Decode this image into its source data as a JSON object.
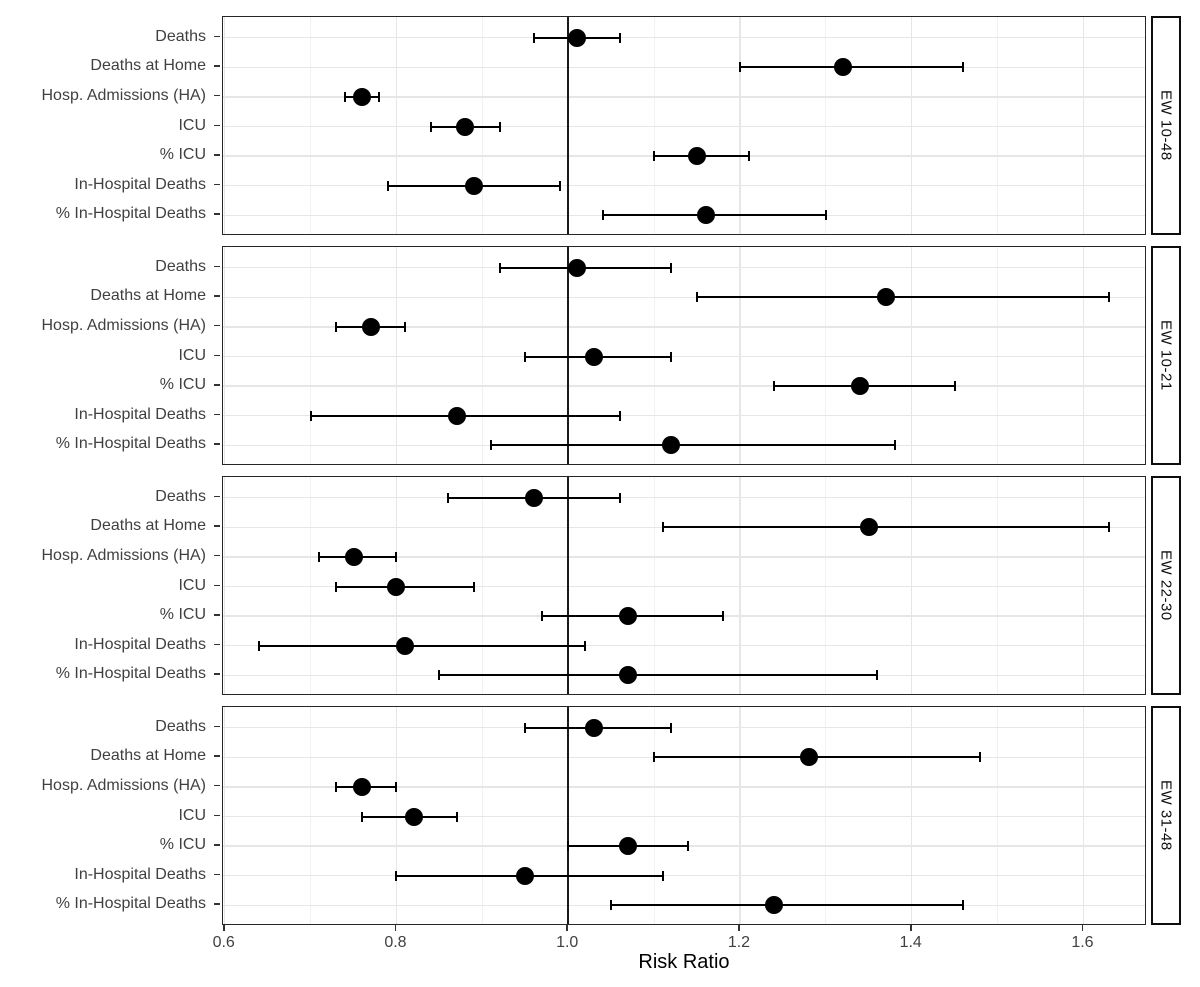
{
  "chart_data": {
    "type": "scatter",
    "subtype": "faceted-forest-plot-with-error-bars",
    "title": "",
    "xlabel": "Risk Ratio",
    "ylabel": "",
    "legend": "none",
    "grid": "on",
    "xlim": [
      0.598,
      1.674
    ],
    "x_ticks": [
      0.6,
      0.8,
      1.0,
      1.2,
      1.4,
      1.6
    ],
    "x_tick_labels": [
      "0.6",
      "0.8",
      "1.0",
      "1.2",
      "1.4",
      "1.6"
    ],
    "x_minor_gridlines": [
      0.7,
      0.9,
      1.1,
      1.3,
      1.5
    ],
    "reference_line_x": 1.0,
    "categories": [
      "Deaths",
      "Deaths at Home",
      "Hosp. Admissions (HA)",
      "ICU",
      "% ICU",
      "In-Hospital Deaths",
      "% In-Hospital Deaths"
    ],
    "facets": [
      {
        "label": "EW 10-48",
        "rows": [
          {
            "category": "Deaths",
            "estimate": 1.01,
            "ci_low": 0.96,
            "ci_high": 1.06
          },
          {
            "category": "Deaths at Home",
            "estimate": 1.32,
            "ci_low": 1.2,
            "ci_high": 1.46
          },
          {
            "category": "Hosp. Admissions (HA)",
            "estimate": 0.76,
            "ci_low": 0.74,
            "ci_high": 0.78
          },
          {
            "category": "ICU",
            "estimate": 0.88,
            "ci_low": 0.84,
            "ci_high": 0.92
          },
          {
            "category": "% ICU",
            "estimate": 1.15,
            "ci_low": 1.1,
            "ci_high": 1.21
          },
          {
            "category": "In-Hospital Deaths",
            "estimate": 0.89,
            "ci_low": 0.79,
            "ci_high": 0.99
          },
          {
            "category": "% In-Hospital Deaths",
            "estimate": 1.16,
            "ci_low": 1.04,
            "ci_high": 1.3
          }
        ]
      },
      {
        "label": "EW 10-21",
        "rows": [
          {
            "category": "Deaths",
            "estimate": 1.01,
            "ci_low": 0.92,
            "ci_high": 1.12
          },
          {
            "category": "Deaths at Home",
            "estimate": 1.37,
            "ci_low": 1.15,
            "ci_high": 1.63
          },
          {
            "category": "Hosp. Admissions (HA)",
            "estimate": 0.77,
            "ci_low": 0.73,
            "ci_high": 0.81
          },
          {
            "category": "ICU",
            "estimate": 1.03,
            "ci_low": 0.95,
            "ci_high": 1.12
          },
          {
            "category": "% ICU",
            "estimate": 1.34,
            "ci_low": 1.24,
            "ci_high": 1.45
          },
          {
            "category": "In-Hospital Deaths",
            "estimate": 0.87,
            "ci_low": 0.7,
            "ci_high": 1.06
          },
          {
            "category": "% In-Hospital Deaths",
            "estimate": 1.12,
            "ci_low": 0.91,
            "ci_high": 1.38
          }
        ]
      },
      {
        "label": "EW 22-30",
        "rows": [
          {
            "category": "Deaths",
            "estimate": 0.96,
            "ci_low": 0.86,
            "ci_high": 1.06
          },
          {
            "category": "Deaths at Home",
            "estimate": 1.35,
            "ci_low": 1.11,
            "ci_high": 1.63
          },
          {
            "category": "Hosp. Admissions (HA)",
            "estimate": 0.75,
            "ci_low": 0.71,
            "ci_high": 0.8
          },
          {
            "category": "ICU",
            "estimate": 0.8,
            "ci_low": 0.73,
            "ci_high": 0.89
          },
          {
            "category": "% ICU",
            "estimate": 1.07,
            "ci_low": 0.97,
            "ci_high": 1.18
          },
          {
            "category": "In-Hospital Deaths",
            "estimate": 0.81,
            "ci_low": 0.64,
            "ci_high": 1.02
          },
          {
            "category": "% In-Hospital Deaths",
            "estimate": 1.07,
            "ci_low": 0.85,
            "ci_high": 1.36
          }
        ]
      },
      {
        "label": "EW 31-48",
        "rows": [
          {
            "category": "Deaths",
            "estimate": 1.03,
            "ci_low": 0.95,
            "ci_high": 1.12
          },
          {
            "category": "Deaths at Home",
            "estimate": 1.28,
            "ci_low": 1.1,
            "ci_high": 1.48
          },
          {
            "category": "Hosp. Admissions (HA)",
            "estimate": 0.76,
            "ci_low": 0.73,
            "ci_high": 0.8
          },
          {
            "category": "ICU",
            "estimate": 0.82,
            "ci_low": 0.76,
            "ci_high": 0.87
          },
          {
            "category": "% ICU",
            "estimate": 1.07,
            "ci_low": 1.0,
            "ci_high": 1.14
          },
          {
            "category": "In-Hospital Deaths",
            "estimate": 0.95,
            "ci_low": 0.8,
            "ci_high": 1.11
          },
          {
            "category": "% In-Hospital Deaths",
            "estimate": 1.24,
            "ci_low": 1.05,
            "ci_high": 1.46
          }
        ]
      }
    ],
    "colors": {
      "point": "#000000",
      "ci": "#000000",
      "reference_line": "#1a1a1a",
      "grid_major": "#e6e6e6",
      "grid_minor": "#f1f1f1",
      "panel_border": "#262626",
      "strip_border": "#0d0d0d",
      "axis_text": "#404040",
      "axis_title": "#000000",
      "background": "#ffffff"
    }
  }
}
